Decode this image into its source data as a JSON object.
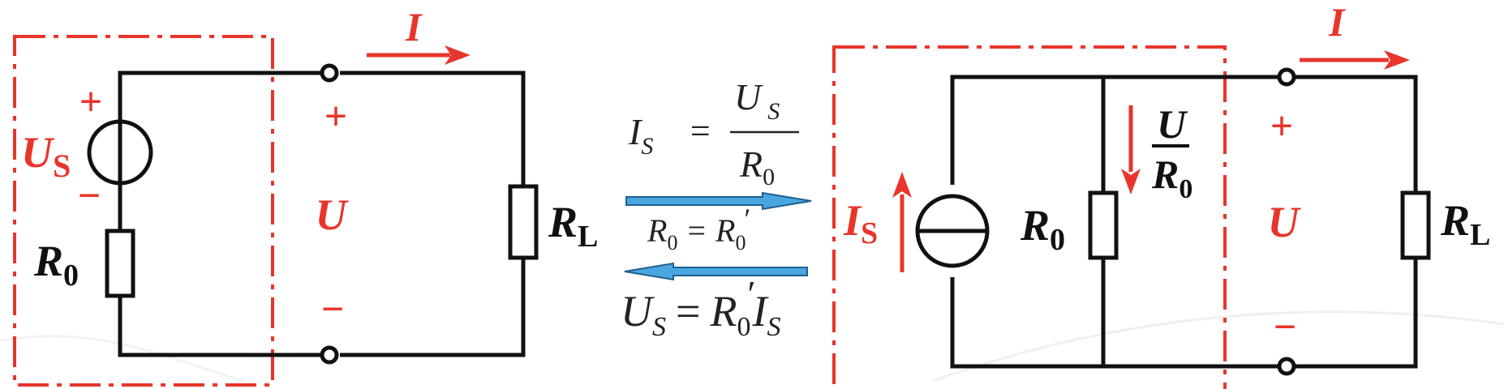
{
  "colors": {
    "wire": "#111111",
    "annotation": "#e8352b",
    "arrow_fill": "#4aa6df",
    "arrow_stroke": "#1d5f93"
  },
  "left_circuit": {
    "source_label_main": "U",
    "source_label_sub": "S",
    "source_plus": "+",
    "source_minus": "−",
    "r0_main": "R",
    "r0_sub": "0",
    "rl_main": "R",
    "rl_sub": "L",
    "current_label": "I",
    "terminal_plus": "+",
    "terminal_minus": "−",
    "voltage_label": "U"
  },
  "right_circuit": {
    "source_label_main": "I",
    "source_label_sub": "S",
    "r0_main": "R",
    "r0_sub": "0",
    "branch_num": "U",
    "branch_den_main": "R",
    "branch_den_sub": "0",
    "rl_main": "R",
    "rl_sub": "L",
    "current_label": "I",
    "terminal_plus": "+",
    "terminal_minus": "−",
    "voltage_label": "U"
  },
  "equations": {
    "is_lhs": "I",
    "is_lhs_sub": "S",
    "equals": "=",
    "is_num": "U",
    "is_num_sub": "S",
    "is_den": "R",
    "is_den_sub": "0",
    "r_eq_lhs": "R",
    "r_eq_lhs_sub": "0",
    "r_eq_rhs": "R",
    "r_eq_rhs_sub": "0",
    "prime": "′",
    "us_lhs": "U",
    "us_lhs_sub": "S",
    "us_rhs_r": "R",
    "us_rhs_r_sub": "0",
    "us_rhs_i": "I",
    "us_rhs_i_sub": "S"
  }
}
